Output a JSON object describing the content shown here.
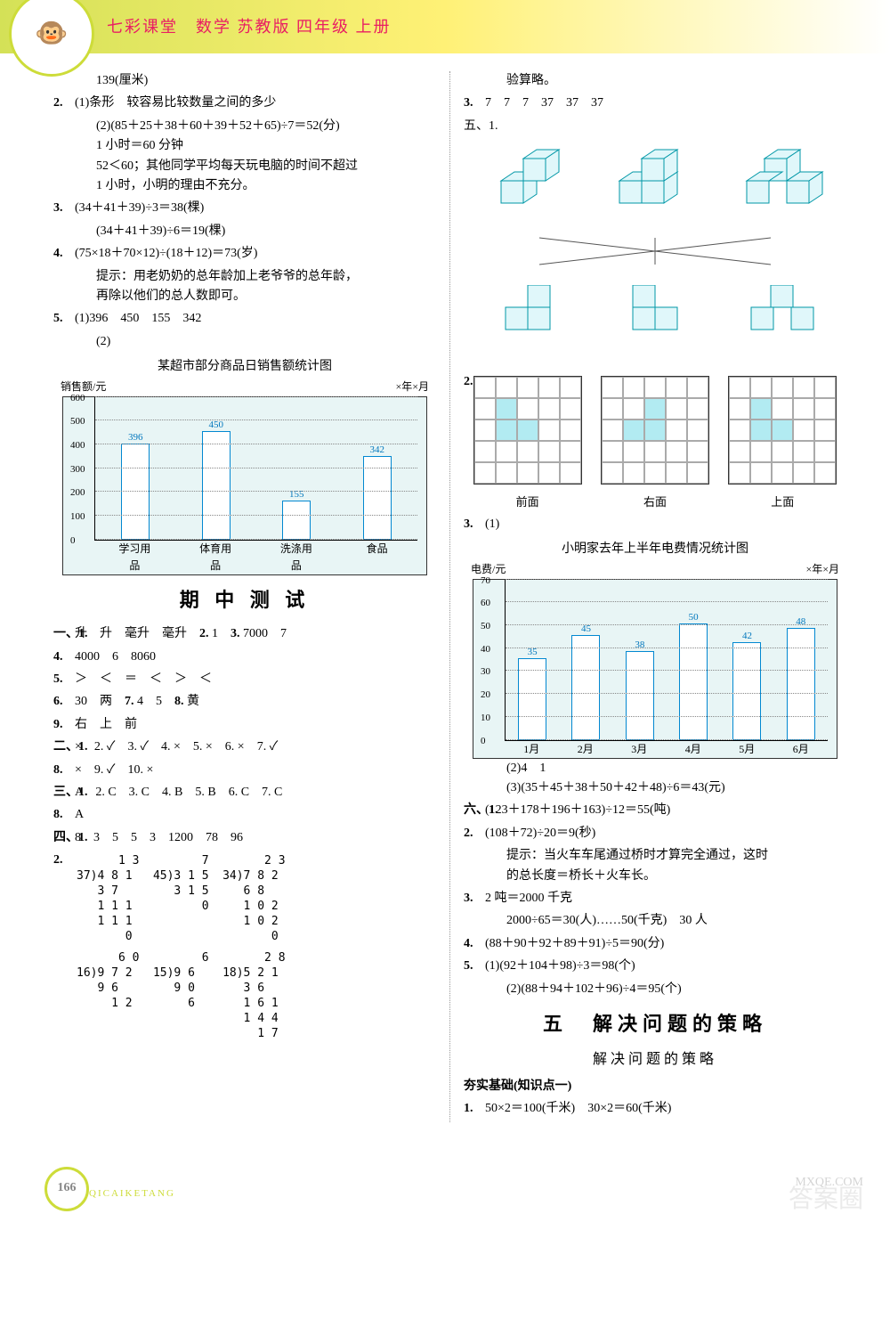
{
  "header": {
    "title": "七彩课堂　数学 苏教版 四年级 上册"
  },
  "left": {
    "l0": "139(厘米)",
    "q2a": "(1)条形　较容易比较数量之间的多少",
    "q2b": "(2)(85＋25＋38＋60＋39＋52＋65)÷7＝52(分)",
    "q2c": "1 小时＝60 分钟",
    "q2d": "52＜60；其他同学平均每天玩电脑的时间不超过",
    "q2e": "1 小时，小明的理由不充分。",
    "q3a": "(34＋41＋39)÷3＝38(棵)",
    "q3b": "(34＋41＋39)÷6＝19(棵)",
    "q4a": "(75×18＋70×12)÷(18＋12)＝73(岁)",
    "q4b": "提示：用老奶奶的总年龄加上老爷爷的总年龄，",
    "q4c": "再除以他们的总人数即可。",
    "q5a": "(1)396　450　155　342",
    "q5b": "(2)",
    "chart1": {
      "title": "某超市部分商品日销售额统计图",
      "ylabel": "销售额/元",
      "meta_right": "×年×月",
      "ymax": 600,
      "ystep": 100,
      "categories": [
        "学习用品",
        "体育用品",
        "洗涤用品",
        "食品"
      ],
      "values": [
        396,
        450,
        155,
        342
      ]
    },
    "midterm": "期 中 测 试",
    "s1_1": "升　升　毫升　毫升",
    "s1_2": "1",
    "s1_3": "7000　7",
    "s1_4": "4000　6　8060",
    "s1_5": "＞　＜　＝　＜　＞　＜",
    "s1_6": "30　两",
    "s1_7": "4　5",
    "s1_8": "黄",
    "s1_9": "右　上　前",
    "s2": "×　2. ✓　3. ✓　4. ×　5. ×　6. ×　7. ✓",
    "s2b": "×　9. ✓　10. ×",
    "s3": "A　2. C　3. C　4. B　5. B　6. C　7. C",
    "s3b": "A",
    "s4_1": "8　3　5　5　3　1200　78　96",
    "ld1": "      1 3\n37)4 8 1\n   3 7   \n   1 1 1\n   1 1 1\n       0",
    "ld2": "       7\n45)3 1 5\n   3 1 5\n       0",
    "ld3": "      2 3\n34)7 8 2\n   6 8   \n   1 0 2\n   1 0 2\n       0",
    "ld4": "      6 0\n16)9 7 2\n   9 6   \n     1 2",
    "ld5": "       6\n15)9 6\n   9 0\n     6",
    "ld6": "      2 8\n18)5 2 1\n   3 6   \n   1 6 1\n   1 4 4\n     1 7"
  },
  "right": {
    "r0": "验算略。",
    "r3": "7　7　7　37　37　37",
    "sec5": "五、1.",
    "grid_labels": [
      "前面",
      "右面",
      "上面"
    ],
    "r3_1": "(1)",
    "chart2": {
      "title": "小明家去年上半年电费情况统计图",
      "ylabel": "电费/元",
      "meta_right": "×年×月",
      "ymax": 70,
      "ystep": 10,
      "categories": [
        "1月",
        "2月",
        "3月",
        "4月",
        "5月",
        "6月"
      ],
      "values": [
        35,
        45,
        38,
        50,
        42,
        48
      ]
    },
    "r3_2": "(2)4　1",
    "r3_3": "(3)(35＋45＋38＋50＋42＋48)÷6＝43(元)",
    "s6_1": "(123＋178＋196＋163)÷12＝55(吨)",
    "s6_2": "(108＋72)÷20＝9(秒)",
    "s6_2b": "提示：当火车车尾通过桥时才算完全通过，这时",
    "s6_2c": "的总长度＝桥长＋火车长。",
    "s6_3a": "2 吨＝2000 千克",
    "s6_3b": "2000÷65＝30(人)……50(千克)　30 人",
    "s6_4": "(88＋90＋92＋89＋91)÷5＝90(分)",
    "s6_5a": "(1)(92＋104＋98)÷3＝98(个)",
    "s6_5b": "(2)(88＋94＋102＋96)÷4＝95(个)",
    "unit5": "五　解决问题的策略",
    "unit5sub": "解决问题的策略",
    "jichu": "夯实基础(知识点一)",
    "j1": "50×2＝100(千米)　30×2＝60(千米)"
  },
  "footer": {
    "page": "166",
    "brand": "QICAIKETANG",
    "wm1": "答案圈",
    "wm2": "MXQE.COM"
  }
}
